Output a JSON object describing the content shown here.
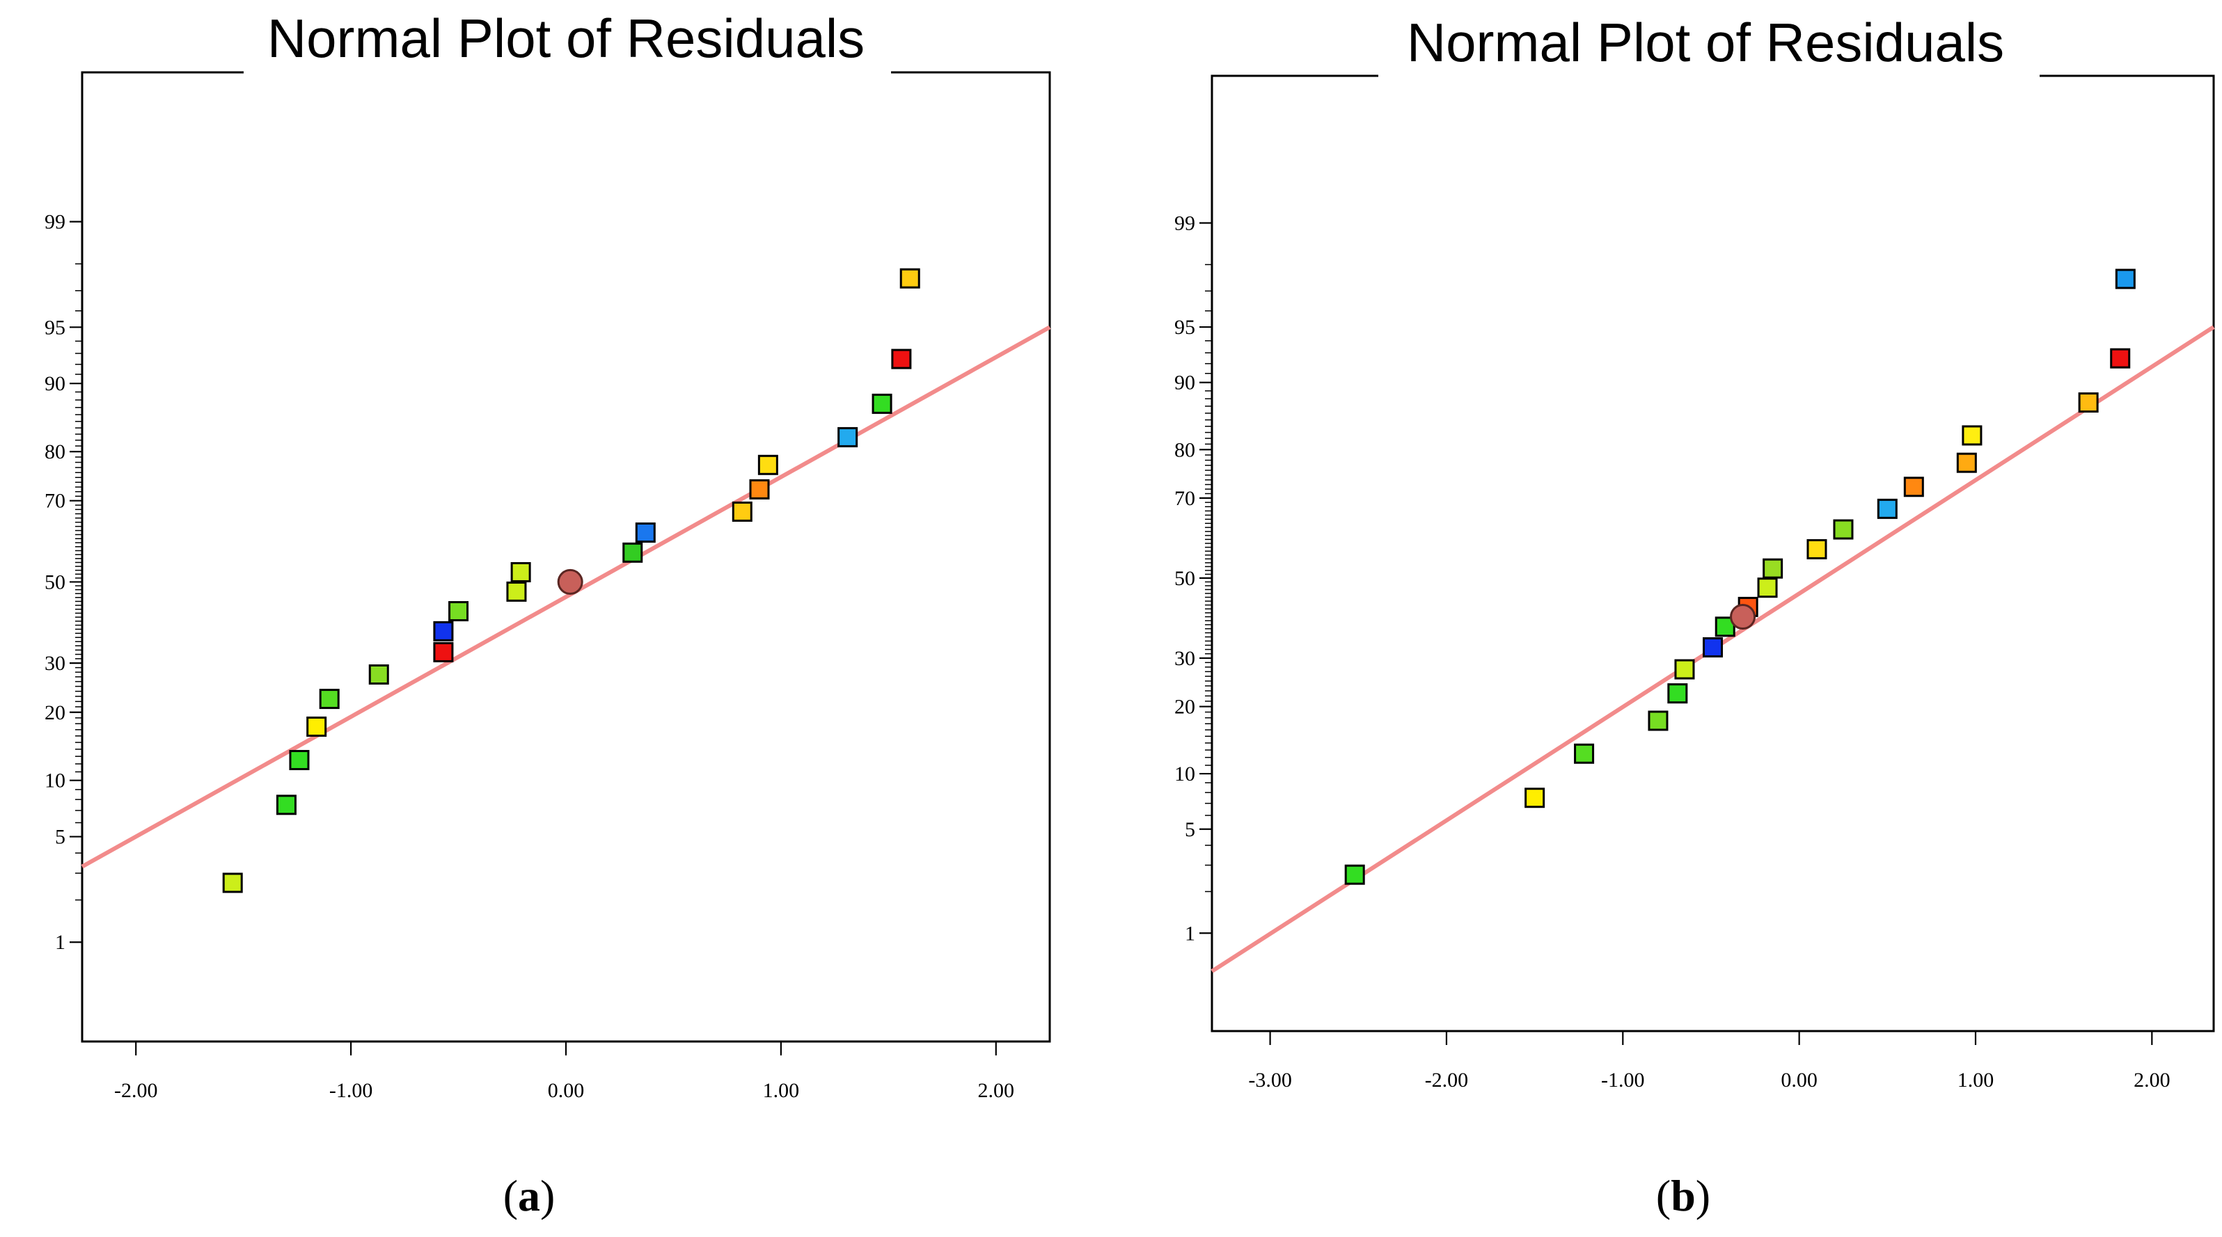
{
  "chart_data": [
    {
      "type": "scatter",
      "title": "Normal Plot of Residuals",
      "caption_letter": "a",
      "xlabel": "",
      "ylabel": "",
      "xlim": [
        -2.25,
        2.25
      ],
      "xticks": [
        -2,
        -1,
        0,
        1,
        2
      ],
      "xtick_labels": [
        "-2.00",
        "-1.00",
        "0.00",
        "1.00",
        "2.00"
      ],
      "ylim": [
        0.15,
        99.95
      ],
      "yticks": [
        1,
        5,
        10,
        20,
        30,
        50,
        70,
        80,
        90,
        95,
        99
      ],
      "ytick_labels": [
        "1",
        "5",
        "10",
        "20",
        "30",
        "50",
        "70",
        "80",
        "90",
        "95",
        "99"
      ],
      "fit_line": {
        "x": [
          -2.25,
          2.25
        ],
        "y": [
          3.3,
          95.0
        ],
        "color": "#f28b8b"
      },
      "points": [
        {
          "x": -1.55,
          "y": 2.6,
          "color": "#ccee1a"
        },
        {
          "x": -1.3,
          "y": 7.5,
          "color": "#33dd22"
        },
        {
          "x": -1.24,
          "y": 12.5,
          "color": "#33dd22"
        },
        {
          "x": -1.16,
          "y": 17.5,
          "color": "#ffee00"
        },
        {
          "x": -1.1,
          "y": 22.5,
          "color": "#55dd22"
        },
        {
          "x": -0.87,
          "y": 27.5,
          "color": "#88dd22"
        },
        {
          "x": -0.57,
          "y": 32.5,
          "color": "#ee1111"
        },
        {
          "x": -0.57,
          "y": 37.5,
          "color": "#1133ee"
        },
        {
          "x": -0.5,
          "y": 42.5,
          "color": "#77dd22"
        },
        {
          "x": -0.23,
          "y": 47.5,
          "color": "#ccee1a"
        },
        {
          "x": -0.21,
          "y": 52.5,
          "color": "#ccee1a"
        },
        {
          "x": 0.31,
          "y": 57.5,
          "color": "#33cc22"
        },
        {
          "x": 0.37,
          "y": 62.5,
          "color": "#1a77ee"
        },
        {
          "x": 0.82,
          "y": 67.5,
          "color": "#ffcc11"
        },
        {
          "x": 0.9,
          "y": 72.5,
          "color": "#ff8811"
        },
        {
          "x": 0.94,
          "y": 77.5,
          "color": "#ffdd11"
        },
        {
          "x": 1.31,
          "y": 82.5,
          "color": "#22aaee"
        },
        {
          "x": 1.47,
          "y": 87.5,
          "color": "#33dd22"
        },
        {
          "x": 1.56,
          "y": 92.5,
          "color": "#ee1111"
        },
        {
          "x": 1.6,
          "y": 97.5,
          "color": "#ffcc11"
        }
      ],
      "design_point": {
        "x": 0.02,
        "y": 50.0,
        "color": "#c8605a"
      }
    },
    {
      "type": "scatter",
      "title": "Normal Plot of Residuals",
      "caption_letter": "b",
      "xlabel": "",
      "ylabel": "",
      "xlim": [
        -3.33,
        2.35
      ],
      "xticks": [
        -3,
        -2,
        -1,
        0,
        1,
        2
      ],
      "xtick_labels": [
        "-3.00",
        "-2.00",
        "-1.00",
        "0.00",
        "1.00",
        "2.00"
      ],
      "ylim": [
        0.15,
        99.95
      ],
      "yticks": [
        1,
        5,
        10,
        20,
        30,
        50,
        70,
        80,
        90,
        95,
        99
      ],
      "ytick_labels": [
        "1",
        "5",
        "10",
        "20",
        "30",
        "50",
        "70",
        "80",
        "90",
        "95",
        "99"
      ],
      "fit_line": {
        "x": [
          -3.33,
          2.35
        ],
        "y": [
          0.5,
          95.0
        ],
        "color": "#f28b8b"
      },
      "points": [
        {
          "x": -2.52,
          "y": 2.6,
          "color": "#33dd22"
        },
        {
          "x": -1.5,
          "y": 7.5,
          "color": "#ffee00"
        },
        {
          "x": -1.22,
          "y": 12.5,
          "color": "#55dd22"
        },
        {
          "x": -0.8,
          "y": 17.5,
          "color": "#77dd22"
        },
        {
          "x": -0.69,
          "y": 22.5,
          "color": "#33dd22"
        },
        {
          "x": -0.65,
          "y": 27.5,
          "color": "#ccee1a"
        },
        {
          "x": -0.49,
          "y": 32.5,
          "color": "#1133ee"
        },
        {
          "x": -0.42,
          "y": 37.5,
          "color": "#33dd22"
        },
        {
          "x": -0.29,
          "y": 42.5,
          "color": "#ff5511"
        },
        {
          "x": -0.18,
          "y": 47.5,
          "color": "#ccee1a"
        },
        {
          "x": -0.15,
          "y": 52.5,
          "color": "#99dd22"
        },
        {
          "x": 0.1,
          "y": 57.5,
          "color": "#ffdd11"
        },
        {
          "x": 0.25,
          "y": 62.5,
          "color": "#88dd22"
        },
        {
          "x": 0.5,
          "y": 67.5,
          "color": "#22aaee"
        },
        {
          "x": 0.65,
          "y": 72.5,
          "color": "#ff8811"
        },
        {
          "x": 0.95,
          "y": 77.5,
          "color": "#ffaa11"
        },
        {
          "x": 0.98,
          "y": 82.5,
          "color": "#ffee11"
        },
        {
          "x": 1.64,
          "y": 87.5,
          "color": "#ffbb11"
        },
        {
          "x": 1.82,
          "y": 92.5,
          "color": "#ee1111"
        },
        {
          "x": 1.85,
          "y": 97.5,
          "color": "#1a99ee"
        }
      ],
      "design_point": {
        "x": -0.32,
        "y": 40.0,
        "color": "#c8605a"
      }
    }
  ]
}
